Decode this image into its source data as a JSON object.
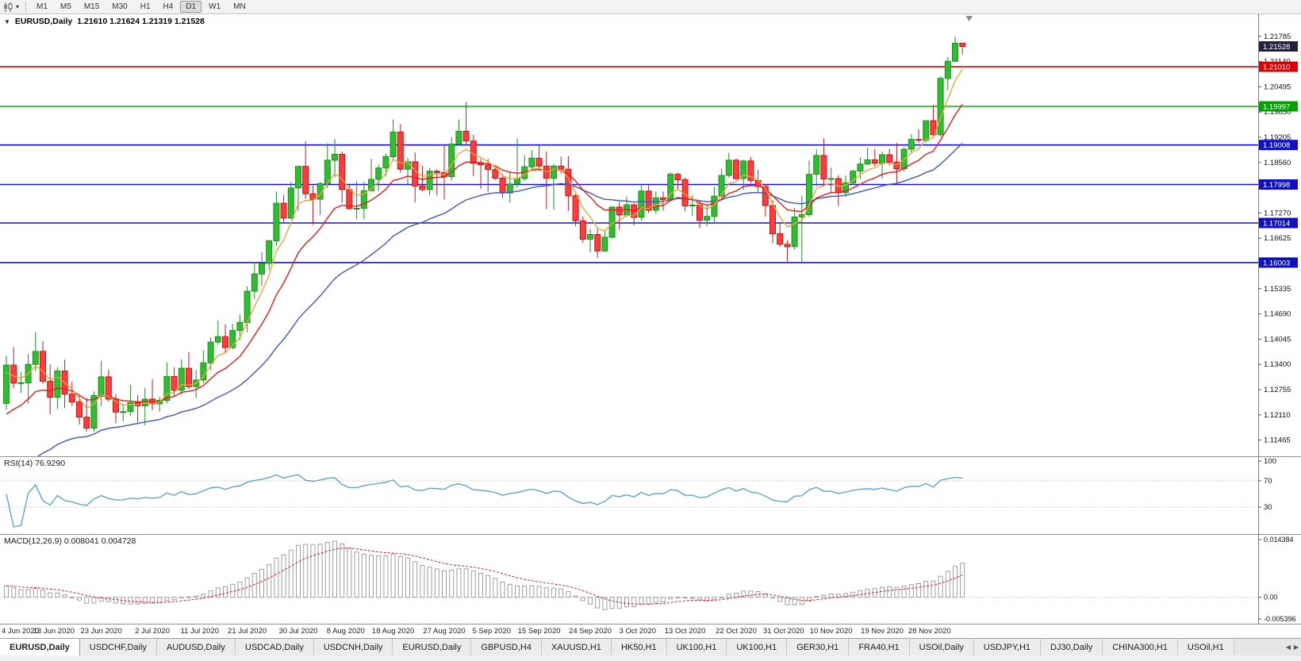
{
  "glyphs": {
    "caret_small": "▾",
    "caret_title": "▼",
    "arrow_left": "◀",
    "arrow_right": "▶"
  },
  "colors": {
    "candle_up": "#2FBE2F",
    "candle_up_border": "#1E8F1E",
    "candle_down": "#FF3B3B",
    "candle_down_border": "#C01818",
    "rsi_line": "#4FA0D8",
    "macd_hist": "#A0A0A0",
    "macd_signal": "#E02020",
    "axis_text": "#111111",
    "grid_dotted": "#B8B8B8"
  },
  "toolbar": {
    "timeframes": [
      "M1",
      "M5",
      "M15",
      "M30",
      "H1",
      "H4",
      "D1",
      "W1",
      "MN"
    ],
    "active": "D1"
  },
  "chart": {
    "symbol_title": "EURUSD,Daily",
    "ohlc_text": "1.21610 1.21624 1.21319 1.21528",
    "current_price": {
      "value": 1.21528,
      "label": "1.21528",
      "badge": "#23233C"
    }
  },
  "chart_data": {
    "type": "candlestick",
    "title": "EURUSD,Daily",
    "symbol": "EURUSD",
    "timeframe": "Daily",
    "last_ohlc": {
      "open": 1.2161,
      "high": 1.21624,
      "low": 1.21319,
      "close": 1.21528
    },
    "ylim": [
      1.1105,
      1.2235
    ],
    "price_axis_ticks": [
      "1.21785",
      "1.21140",
      "1.20495",
      "1.19850",
      "1.19205",
      "1.18560",
      "1.17915",
      "1.17270",
      "1.16625",
      "1.15980",
      "1.15335",
      "1.14690",
      "1.14045",
      "1.13400",
      "1.12755",
      "1.12110",
      "1.11465"
    ],
    "horizontal_lines": [
      {
        "price": 1.2101,
        "label": "1.21010",
        "color": "#E80000",
        "badge": "#DD0000"
      },
      {
        "price": 1.19997,
        "label": "1.19997",
        "color": "#00BE00",
        "badge": "#00A400"
      },
      {
        "price": 1.19008,
        "label": "1.19008",
        "color": "#1212DE",
        "badge": "#0F0FC4"
      },
      {
        "price": 1.17998,
        "label": "1.17998",
        "color": "#1212DE",
        "badge": "#0F0FC4"
      },
      {
        "price": 1.17014,
        "label": "1.17014",
        "color": "#1212DE",
        "badge": "#0F0FC4"
      },
      {
        "price": 1.16003,
        "label": "1.16003",
        "color": "#1212DE",
        "badge": "#0F0FC4"
      }
    ],
    "moving_averages": [
      {
        "name": "ma-slow",
        "period": 30,
        "seed": 1.101,
        "color": "#3A58C8"
      },
      {
        "name": "ma-mid",
        "period": 12,
        "seed": 1.119,
        "color": "#F01818"
      },
      {
        "name": "ma-fast",
        "period": 5,
        "seed": 1.131,
        "color": "#F2A33C"
      }
    ],
    "date_ticks": [
      {
        "label": "4 Jun 2020",
        "index": 0
      },
      {
        "label": "13 Jun 2020",
        "index": 6.5
      },
      {
        "label": "23 Jun 2020",
        "index": 13
      },
      {
        "label": "2 Jul 2020",
        "index": 20
      },
      {
        "label": "11 Jul 2020",
        "index": 26.5
      },
      {
        "label": "21 Jul 2020",
        "index": 33
      },
      {
        "label": "30 Jul 2020",
        "index": 40
      },
      {
        "label": "8 Aug 2020",
        "index": 46.5
      },
      {
        "label": "18 Aug 2020",
        "index": 53
      },
      {
        "label": "27 Aug 2020",
        "index": 60
      },
      {
        "label": "5 Sep 2020",
        "index": 66.5
      },
      {
        "label": "15 Sep 2020",
        "index": 73
      },
      {
        "label": "24 Sep 2020",
        "index": 80
      },
      {
        "label": "3 Oct 2020",
        "index": 86.5
      },
      {
        "label": "13 Oct 2020",
        "index": 93
      },
      {
        "label": "22 Oct 2020",
        "index": 100
      },
      {
        "label": "31 Oct 2020",
        "index": 106.5
      },
      {
        "label": "10 Nov 2020",
        "index": 113
      },
      {
        "label": "19 Nov 2020",
        "index": 120
      },
      {
        "label": "28 Nov 2020",
        "index": 126.5
      }
    ],
    "candles": [
      [
        1.124,
        1.1362,
        1.1224,
        1.1338
      ],
      [
        1.1338,
        1.1384,
        1.1279,
        1.1292
      ],
      [
        1.1292,
        1.132,
        1.1267,
        1.1293
      ],
      [
        1.1293,
        1.1366,
        1.124,
        1.134
      ],
      [
        1.134,
        1.1422,
        1.1322,
        1.1373
      ],
      [
        1.1373,
        1.14,
        1.129,
        1.1297
      ],
      [
        1.1297,
        1.134,
        1.1212,
        1.1256
      ],
      [
        1.1256,
        1.1333,
        1.1226,
        1.1323
      ],
      [
        1.1323,
        1.1352,
        1.1228,
        1.1264
      ],
      [
        1.1264,
        1.1296,
        1.1233,
        1.1244
      ],
      [
        1.1244,
        1.1262,
        1.1186,
        1.1205
      ],
      [
        1.1205,
        1.1255,
        1.1168,
        1.1177
      ],
      [
        1.1177,
        1.1271,
        1.1168,
        1.126
      ],
      [
        1.126,
        1.1349,
        1.1233,
        1.1308
      ],
      [
        1.1308,
        1.1326,
        1.1245,
        1.1251
      ],
      [
        1.1251,
        1.1264,
        1.119,
        1.1218
      ],
      [
        1.1218,
        1.1239,
        1.1194,
        1.1219
      ],
      [
        1.1219,
        1.1288,
        1.1209,
        1.1242
      ],
      [
        1.1242,
        1.1262,
        1.1191,
        1.1234
      ],
      [
        1.1234,
        1.128,
        1.1184,
        1.1251
      ],
      [
        1.1251,
        1.1302,
        1.1223,
        1.1239
      ],
      [
        1.1239,
        1.1257,
        1.1219,
        1.1248
      ],
      [
        1.1248,
        1.1345,
        1.1241,
        1.1309
      ],
      [
        1.1309,
        1.1333,
        1.1259,
        1.1274
      ],
      [
        1.1274,
        1.1353,
        1.1262,
        1.133
      ],
      [
        1.133,
        1.1371,
        1.1277,
        1.1283
      ],
      [
        1.1283,
        1.1325,
        1.1254,
        1.13
      ],
      [
        1.13,
        1.1375,
        1.1292,
        1.1344
      ],
      [
        1.1344,
        1.1409,
        1.1325,
        1.1397
      ],
      [
        1.1397,
        1.1452,
        1.139,
        1.1411
      ],
      [
        1.1411,
        1.1442,
        1.137,
        1.1383
      ],
      [
        1.1383,
        1.1444,
        1.1378,
        1.1427
      ],
      [
        1.1427,
        1.1468,
        1.1402,
        1.1447
      ],
      [
        1.1447,
        1.154,
        1.1422,
        1.1527
      ],
      [
        1.1527,
        1.1601,
        1.1507,
        1.1571
      ],
      [
        1.1571,
        1.1627,
        1.154,
        1.1598
      ],
      [
        1.1598,
        1.1658,
        1.1581,
        1.1656
      ],
      [
        1.1656,
        1.1782,
        1.1644,
        1.1752
      ],
      [
        1.1752,
        1.1773,
        1.1701,
        1.1714
      ],
      [
        1.1714,
        1.1807,
        1.1712,
        1.1791
      ],
      [
        1.1791,
        1.1848,
        1.1732,
        1.1846
      ],
      [
        1.1846,
        1.191,
        1.1763,
        1.1776
      ],
      [
        1.1776,
        1.1797,
        1.1697,
        1.1762
      ],
      [
        1.1762,
        1.1807,
        1.1722,
        1.1802
      ],
      [
        1.1802,
        1.1905,
        1.179,
        1.1862
      ],
      [
        1.1862,
        1.1916,
        1.1818,
        1.1877
      ],
      [
        1.1877,
        1.1884,
        1.1754,
        1.1787
      ],
      [
        1.1787,
        1.1798,
        1.1736,
        1.1738
      ],
      [
        1.1738,
        1.1808,
        1.1711,
        1.1739
      ],
      [
        1.1739,
        1.1807,
        1.1711,
        1.1784
      ],
      [
        1.1784,
        1.1865,
        1.1782,
        1.1813
      ],
      [
        1.1813,
        1.1851,
        1.1783,
        1.1842
      ],
      [
        1.1842,
        1.1879,
        1.1822,
        1.1871
      ],
      [
        1.1871,
        1.1966,
        1.1863,
        1.1934
      ],
      [
        1.1934,
        1.1954,
        1.183,
        1.1839
      ],
      [
        1.1839,
        1.1868,
        1.1801,
        1.1858
      ],
      [
        1.1858,
        1.1882,
        1.1754,
        1.1796
      ],
      [
        1.1796,
        1.1848,
        1.1782,
        1.1787
      ],
      [
        1.1787,
        1.1842,
        1.1773,
        1.1834
      ],
      [
        1.1834,
        1.1839,
        1.1772,
        1.183
      ],
      [
        1.183,
        1.1899,
        1.1762,
        1.182
      ],
      [
        1.182,
        1.1921,
        1.181,
        1.1903
      ],
      [
        1.1903,
        1.1966,
        1.1899,
        1.1936
      ],
      [
        1.1936,
        1.2011,
        1.1902,
        1.1911
      ],
      [
        1.1911,
        1.1927,
        1.1822,
        1.1854
      ],
      [
        1.1854,
        1.1865,
        1.1789,
        1.185
      ],
      [
        1.185,
        1.1865,
        1.1781,
        1.1838
      ],
      [
        1.1838,
        1.1849,
        1.1812,
        1.1816
      ],
      [
        1.1816,
        1.1827,
        1.1766,
        1.1778
      ],
      [
        1.1778,
        1.1834,
        1.1753,
        1.1801
      ],
      [
        1.1801,
        1.1917,
        1.1792,
        1.1815
      ],
      [
        1.1815,
        1.1875,
        1.1809,
        1.1845
      ],
      [
        1.1845,
        1.1888,
        1.184,
        1.1867
      ],
      [
        1.1867,
        1.1901,
        1.1835,
        1.1847
      ],
      [
        1.1847,
        1.1884,
        1.1737,
        1.1816
      ],
      [
        1.1816,
        1.1852,
        1.1736,
        1.1847
      ],
      [
        1.1847,
        1.1871,
        1.1827,
        1.1839
      ],
      [
        1.1839,
        1.1872,
        1.1732,
        1.1771
      ],
      [
        1.1771,
        1.1777,
        1.1693,
        1.1707
      ],
      [
        1.1707,
        1.1718,
        1.1651,
        1.166
      ],
      [
        1.166,
        1.1686,
        1.1626,
        1.1672
      ],
      [
        1.1672,
        1.1688,
        1.1612,
        1.163
      ],
      [
        1.163,
        1.1684,
        1.1628,
        1.1665
      ],
      [
        1.1665,
        1.1745,
        1.1662,
        1.1742
      ],
      [
        1.1742,
        1.1755,
        1.1684,
        1.1722
      ],
      [
        1.1722,
        1.1769,
        1.1717,
        1.1748
      ],
      [
        1.1748,
        1.1751,
        1.1695,
        1.1716
      ],
      [
        1.1716,
        1.1797,
        1.1708,
        1.1783
      ],
      [
        1.1783,
        1.1798,
        1.1727,
        1.1734
      ],
      [
        1.1734,
        1.1782,
        1.1725,
        1.1766
      ],
      [
        1.1766,
        1.1782,
        1.1733,
        1.1761
      ],
      [
        1.1761,
        1.1831,
        1.1758,
        1.1826
      ],
      [
        1.1826,
        1.183,
        1.1786,
        1.1812
      ],
      [
        1.1812,
        1.1818,
        1.1731,
        1.1745
      ],
      [
        1.1745,
        1.1772,
        1.172,
        1.1747
      ],
      [
        1.1747,
        1.1758,
        1.1688,
        1.1708
      ],
      [
        1.1708,
        1.1747,
        1.1694,
        1.1718
      ],
      [
        1.1718,
        1.1794,
        1.1703,
        1.177
      ],
      [
        1.177,
        1.184,
        1.176,
        1.1823
      ],
      [
        1.1823,
        1.1881,
        1.1817,
        1.1862
      ],
      [
        1.1862,
        1.1866,
        1.1811,
        1.1815
      ],
      [
        1.1815,
        1.1863,
        1.1786,
        1.186
      ],
      [
        1.186,
        1.187,
        1.1803,
        1.181
      ],
      [
        1.181,
        1.1838,
        1.1782,
        1.1795
      ],
      [
        1.1795,
        1.18,
        1.1718,
        1.1746
      ],
      [
        1.1746,
        1.1759,
        1.165,
        1.1674
      ],
      [
        1.1674,
        1.1704,
        1.164,
        1.1647
      ],
      [
        1.1647,
        1.1658,
        1.1603,
        1.1641
      ],
      [
        1.1641,
        1.174,
        1.1633,
        1.1717
      ],
      [
        1.1717,
        1.1771,
        1.1602,
        1.1723
      ],
      [
        1.1723,
        1.1861,
        1.1717,
        1.1826
      ],
      [
        1.1826,
        1.189,
        1.1795,
        1.1874
      ],
      [
        1.1874,
        1.1918,
        1.1795,
        1.1814
      ],
      [
        1.1814,
        1.1843,
        1.1779,
        1.1815
      ],
      [
        1.1815,
        1.1824,
        1.1745,
        1.1779
      ],
      [
        1.1779,
        1.1823,
        1.1768,
        1.1804
      ],
      [
        1.1804,
        1.1838,
        1.1799,
        1.1834
      ],
      [
        1.1834,
        1.1869,
        1.1814,
        1.1852
      ],
      [
        1.1852,
        1.1894,
        1.185,
        1.1863
      ],
      [
        1.1863,
        1.1891,
        1.1846,
        1.1854
      ],
      [
        1.1854,
        1.1884,
        1.1815,
        1.1876
      ],
      [
        1.1876,
        1.1891,
        1.1849,
        1.1857
      ],
      [
        1.1857,
        1.1906,
        1.18,
        1.184
      ],
      [
        1.184,
        1.1895,
        1.1833,
        1.189
      ],
      [
        1.189,
        1.1929,
        1.1882,
        1.1915
      ],
      [
        1.1915,
        1.1941,
        1.1906,
        1.1913
      ],
      [
        1.1913,
        1.1964,
        1.1907,
        1.1963
      ],
      [
        1.1963,
        1.2003,
        1.1923,
        1.1927
      ],
      [
        1.1927,
        1.2076,
        1.1922,
        1.2071
      ],
      [
        1.2071,
        1.2126,
        1.204,
        1.2115
      ],
      [
        1.2115,
        1.2178,
        1.2113,
        1.2161
      ],
      [
        1.2161,
        1.21624,
        1.21319,
        1.21528
      ]
    ],
    "indicators": [
      {
        "name": "RSI",
        "label": "RSI(14) 76.9290",
        "period": 14,
        "current": 76.929,
        "levels": [
          70,
          30
        ],
        "range": [
          0,
          100
        ],
        "axis_labels": [
          "100",
          "70",
          "30"
        ],
        "color": "#4FA0D8"
      },
      {
        "name": "MACD",
        "label": "MACD(12,26,9) 0.008041 0.004728",
        "fast": 12,
        "slow": 26,
        "signal_period": 9,
        "macd_value": 0.008041,
        "signal_value": 0.004728,
        "range": [
          -0.005396,
          0.014384
        ],
        "axis_labels": [
          "0.014384",
          "0.00",
          "-0.005396"
        ]
      }
    ]
  },
  "tabs": {
    "active_index": 0,
    "items": [
      "EURUSD,Daily",
      "USDCHF,Daily",
      "AUDUSD,Daily",
      "USDCAD,Daily",
      "USDCNH,Daily",
      "EURUSD,Daily",
      "GBPUSD,H4",
      "XAUUSD,H1",
      "HK50,H1",
      "UK100,H1",
      "UK100,H1",
      "GER30,H1",
      "FRA40,H1",
      "USOil,Daily",
      "USDJPY,H1",
      "DJ30,Daily",
      "CHINA300,H1",
      "USOil,H1"
    ]
  }
}
